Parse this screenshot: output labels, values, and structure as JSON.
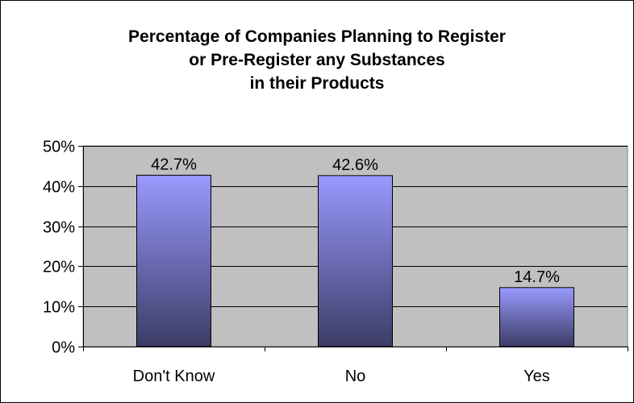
{
  "chart_data": {
    "type": "bar",
    "title_lines": [
      "Percentage of Companies Planning to Register",
      "or Pre-Register any Substances",
      "in their Products"
    ],
    "categories": [
      "Don't Know",
      "No",
      "Yes"
    ],
    "values": [
      42.7,
      42.6,
      14.7
    ],
    "data_labels": [
      "42.7%",
      "42.6%",
      "14.7%"
    ],
    "y_ticks": [
      0,
      10,
      20,
      30,
      40,
      50
    ],
    "y_tick_labels": [
      "0%",
      "10%",
      "20%",
      "30%",
      "40%",
      "50%"
    ],
    "ylim": [
      0,
      50
    ],
    "xlabel": "",
    "ylabel": "",
    "grid": true,
    "legend": "none",
    "colors": {
      "plot_background": "#c0c0c0",
      "bar_top": "#9999ff",
      "bar_bottom": "#3c3c66",
      "gridline": "#000000"
    }
  }
}
